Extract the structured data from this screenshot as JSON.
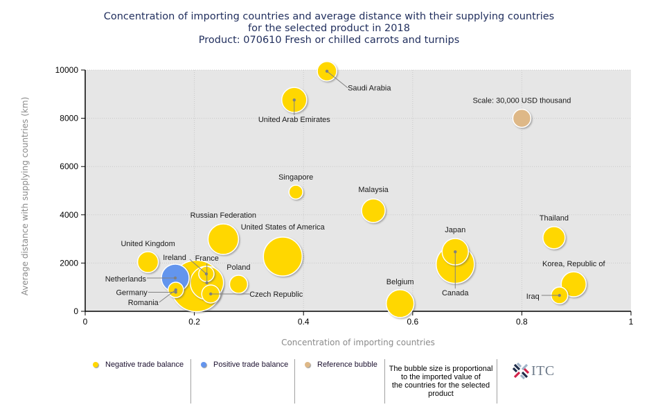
{
  "title_lines": [
    "Concentration of importing countries and average distance with their supplying countries",
    "for the selected product in 2018",
    "Product: 070610 Fresh or chilled carrots and turnips"
  ],
  "colors": {
    "negative": "#ffd700",
    "positive": "#6495ed",
    "reference": "#deb887",
    "plot_bg": "#e6e6e6",
    "grid": "#c8c8c8",
    "leader": "#808080"
  },
  "legend": {
    "items": [
      {
        "label": "Negative trade balance",
        "color_key": "negative"
      },
      {
        "label": "Positive trade balance",
        "color_key": "positive"
      },
      {
        "label": "Reference bubble",
        "color_key": "reference"
      }
    ],
    "note": "The bubble size is proportional to the imported value of the countries for the selected product",
    "note_lines": [
      "The bubble size is proportional",
      "to the imported value of",
      "the countries for the selected",
      "product"
    ],
    "logo_text": "ITC"
  },
  "chart_data": {
    "type": "scatter",
    "subtype": "bubble",
    "title": "Concentration of importing countries and average distance with their supplying countries for the selected product in 2018 — Product: 070610 Fresh or chilled carrots and turnips",
    "xlabel": "Concentration of importing countries",
    "ylabel": "Average distance with supplying countries (km)",
    "xlim": [
      0,
      1
    ],
    "ylim": [
      0,
      10000
    ],
    "xticks": [
      0,
      0.2,
      0.4,
      0.6,
      0.8,
      1
    ],
    "xtick_labels": [
      "0",
      "0.2",
      "0.4",
      "0.6",
      "0.8",
      "1"
    ],
    "yticks": [
      0,
      2000,
      4000,
      6000,
      8000,
      10000
    ],
    "ytick_labels": [
      "0",
      "2000",
      "4000",
      "6000",
      "8000",
      "10000"
    ],
    "grid": true,
    "legend_position": "bottom",
    "reference": {
      "label": "Scale: 30,000 USD thousand",
      "x": 0.8,
      "y": 8000,
      "size": 1.0
    },
    "points": [
      {
        "name": "Saudi Arabia",
        "x": 0.443,
        "y": 9950,
        "size": 1.16,
        "balance": "negative"
      },
      {
        "name": "United Arab Emirates",
        "x": 0.383,
        "y": 8760,
        "size": 1.92,
        "balance": "negative"
      },
      {
        "name": "Singapore",
        "x": 0.386,
        "y": 4940,
        "size": 0.59,
        "balance": "negative"
      },
      {
        "name": "Malaysia",
        "x": 0.528,
        "y": 4170,
        "size": 1.71,
        "balance": "negative"
      },
      {
        "name": "Russian Federation",
        "x": 0.253,
        "y": 2990,
        "size": 2.86,
        "balance": "negative"
      },
      {
        "name": "United States of America",
        "x": 0.362,
        "y": 2270,
        "size": 4.64,
        "balance": "negative"
      },
      {
        "name": "United Kingdom",
        "x": 0.115,
        "y": 2040,
        "size": 1.33,
        "balance": "negative"
      },
      {
        "name": "Netherlands",
        "x": 0.165,
        "y": 1380,
        "size": 2.37,
        "balance": "positive"
      },
      {
        "name": "Germany",
        "x": 0.204,
        "y": 1050,
        "size": 8.1,
        "balance": "negative"
      },
      {
        "name": "France",
        "x": 0.223,
        "y": 1180,
        "size": 3.4,
        "balance": "negative"
      },
      {
        "name": "Ireland",
        "x": 0.222,
        "y": 1550,
        "size": 0.72,
        "balance": "negative"
      },
      {
        "name": "Romania",
        "x": 0.166,
        "y": 890,
        "size": 0.72,
        "balance": "negative"
      },
      {
        "name": "Czech Republic",
        "x": 0.23,
        "y": 720,
        "size": 1.0,
        "balance": "negative"
      },
      {
        "name": "Poland",
        "x": 0.281,
        "y": 1120,
        "size": 1.0,
        "balance": "negative"
      },
      {
        "name": "Belgium",
        "x": 0.577,
        "y": 320,
        "size": 2.37,
        "balance": "negative"
      },
      {
        "name": "Canada",
        "x": 0.678,
        "y": 1950,
        "size": 4.47,
        "balance": "negative"
      },
      {
        "name": "Japan",
        "x": 0.678,
        "y": 2470,
        "size": 2.14,
        "balance": "negative"
      },
      {
        "name": "Thailand",
        "x": 0.859,
        "y": 3050,
        "size": 1.51,
        "balance": "negative"
      },
      {
        "name": "Korea, Republic of",
        "x": 0.895,
        "y": 1120,
        "size": 1.92,
        "balance": "negative"
      },
      {
        "name": "Iraq",
        "x": 0.869,
        "y": 660,
        "size": 0.85,
        "balance": "negative"
      }
    ]
  }
}
